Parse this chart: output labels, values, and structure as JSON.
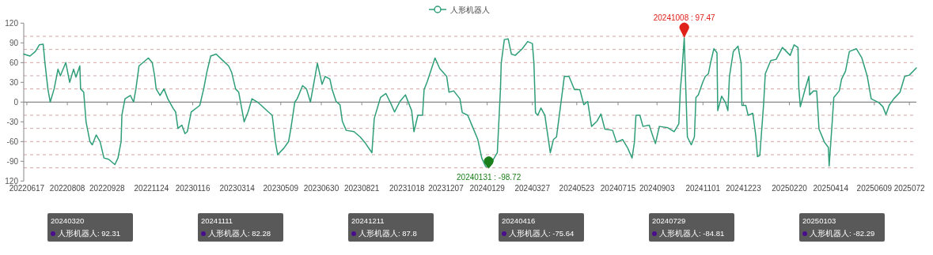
{
  "chart_data": {
    "type": "line",
    "legend": "top",
    "marker": "none",
    "line_style": "solid",
    "xlim": [
      "2022-06-13",
      "2025-08-02"
    ],
    "ylim": [
      -120,
      120
    ],
    "yticks": [
      {
        "value": -120,
        "label": "120"
      },
      -90,
      -60,
      -30,
      0,
      30,
      60,
      90,
      120
    ],
    "xticks": [
      {
        "value": "2022-06-17",
        "label": "20220617"
      },
      {
        "value": "2022-08-08",
        "label": "20220808"
      },
      {
        "value": "2022-09-28",
        "label": "20220928"
      },
      {
        "value": "2022-11-24",
        "label": "20221124"
      },
      {
        "value": "2023-01-16",
        "label": "20230116"
      },
      {
        "value": "2023-03-14",
        "label": "20230314"
      },
      {
        "value": "2023-05-09",
        "label": "20230509"
      },
      {
        "value": "2023-06-30",
        "label": "20230630"
      },
      {
        "value": "2023-08-21",
        "label": "20230821"
      },
      {
        "value": "2023-10-18",
        "label": "20231018"
      },
      {
        "value": "2023-12-07",
        "label": "20231207"
      },
      {
        "value": "2024-01-29",
        "label": "20240129"
      },
      {
        "value": "2024-03-27",
        "label": "20240327"
      },
      {
        "value": "2024-05-23",
        "label": "20240523"
      },
      {
        "value": "2024-07-15",
        "label": "20240715"
      },
      {
        "value": "2024-09-03",
        "label": "20240903"
      },
      {
        "value": "2024-11-01",
        "label": "20241101"
      },
      {
        "value": "2024-12-23",
        "label": "20241223"
      },
      {
        "value": "2025-02-20",
        "label": "20250220"
      },
      {
        "value": "2025-04-14",
        "label": "20250414"
      },
      {
        "value": "2025-06-09",
        "label": "20250609"
      },
      {
        "value": "2025-07-24",
        "label": "2025072"
      }
    ],
    "ref_lines": [
      {
        "axis": "y",
        "value": 100,
        "color": "#d4a5a5",
        "line_style": "dashed"
      },
      {
        "axis": "y",
        "value": 80,
        "color": "#d4a5a5",
        "line_style": "dashed"
      },
      {
        "axis": "y",
        "value": 60,
        "color": "#d4a5a5",
        "line_style": "dashed"
      },
      {
        "axis": "y",
        "value": 40,
        "color": "#d4a5a5",
        "line_style": "dashed"
      },
      {
        "axis": "y",
        "value": 20,
        "color": "#d4a5a5",
        "line_style": "dashed"
      },
      {
        "axis": "y",
        "value": -20,
        "color": "#d4a5a5",
        "line_style": "dashed"
      },
      {
        "axis": "y",
        "value": -40,
        "color": "#d4a5a5",
        "line_style": "dashed"
      },
      {
        "axis": "y",
        "value": -60,
        "color": "#d4a5a5",
        "line_style": "dashed"
      },
      {
        "axis": "y",
        "value": -80,
        "color": "#d4a5a5",
        "line_style": "dashed"
      },
      {
        "axis": "y",
        "value": -100,
        "color": "#d4a5a5",
        "line_style": "dashed"
      }
    ],
    "annotations": [
      {
        "text": "20241008 : 97.47",
        "x": "2024-10-08",
        "y": 97.47
      },
      {
        "text": "20240131 : -98.72",
        "x": "2024-01-31",
        "y": -98.72
      },
      "20240320\n人形机器人: 92.31",
      "20241111\n人形机器人: 82.28",
      "20241211\n人形机器人: 87.8",
      "20240416\n人形机器人: -75.64",
      "20240729\n人形机器人: -84.81",
      "20250103\n人形机器人: -82.29"
    ],
    "x": [
      "2022-06-13",
      "2022-06-21",
      "2022-06-28",
      "2022-07-03",
      "2022-07-08",
      "2022-07-10",
      "2022-07-14",
      "2022-07-17",
      "2022-07-22",
      "2022-07-27",
      "2022-07-30",
      "2022-08-06",
      "2022-08-11",
      "2022-08-16",
      "2022-08-19",
      "2022-08-24",
      "2022-08-25",
      "2022-08-29",
      "2022-09-01",
      "2022-09-06",
      "2022-09-09",
      "2022-09-14",
      "2022-09-19",
      "2022-09-24",
      "2022-09-30",
      "2022-10-08",
      "2022-10-12",
      "2022-10-16",
      "2022-10-17",
      "2022-10-21",
      "2022-10-28",
      "2022-11-01",
      "2022-11-04",
      "2022-11-08",
      "2022-11-20",
      "2022-11-25",
      "2022-11-28",
      "2022-11-30",
      "2022-12-05",
      "2022-12-10",
      "2022-12-15",
      "2022-12-22",
      "2022-12-25",
      "2022-12-28",
      "2023-01-02",
      "2023-01-06",
      "2023-01-09",
      "2023-01-14",
      "2023-01-25",
      "2023-01-30",
      "2023-02-03",
      "2023-02-08",
      "2023-02-15",
      "2023-02-22",
      "2023-03-03",
      "2023-03-07",
      "2023-03-12",
      "2023-03-16",
      "2023-03-23",
      "2023-03-28",
      "2023-04-02",
      "2023-04-09",
      "2023-04-14",
      "2023-04-23",
      "2023-04-28",
      "2023-05-02",
      "2023-05-05",
      "2023-05-13",
      "2023-05-19",
      "2023-05-22",
      "2023-05-27",
      "2023-05-30",
      "2023-06-06",
      "2023-06-11",
      "2023-06-16",
      "2023-06-19",
      "2023-06-25",
      "2023-07-01",
      "2023-07-05",
      "2023-07-11",
      "2023-07-14",
      "2023-07-19",
      "2023-07-24",
      "2023-07-27",
      "2023-08-01",
      "2023-08-11",
      "2023-08-19",
      "2023-08-26",
      "2023-09-03",
      "2023-09-06",
      "2023-09-14",
      "2023-09-21",
      "2023-09-28",
      "2023-10-02",
      "2023-10-09",
      "2023-10-16",
      "2023-10-21",
      "2023-10-24",
      "2023-10-27",
      "2023-11-01",
      "2023-11-07",
      "2023-11-09",
      "2023-11-13",
      "2023-11-23",
      "2023-11-29",
      "2023-12-08",
      "2023-12-11",
      "2023-12-17",
      "2023-12-25",
      "2023-12-28",
      "2024-01-04",
      "2024-01-10",
      "2024-01-17",
      "2024-01-22",
      "2024-01-27",
      "2024-01-31",
      "2024-02-11",
      "2024-02-15",
      "2024-02-16",
      "2024-02-20",
      "2024-02-25",
      "2024-02-29",
      "2024-03-05",
      "2024-03-14",
      "2024-03-21",
      "2024-03-27",
      "2024-03-29",
      "2024-03-31",
      "2024-04-03",
      "2024-04-07",
      "2024-04-12",
      "2024-04-19",
      "2024-04-23",
      "2024-04-27",
      "2024-05-04",
      "2024-05-07",
      "2024-05-13",
      "2024-05-20",
      "2024-05-27",
      "2024-06-01",
      "2024-06-06",
      "2024-06-11",
      "2024-06-18",
      "2024-06-23",
      "2024-06-28",
      "2024-07-08",
      "2024-07-13",
      "2024-07-21",
      "2024-07-27",
      "2024-08-02",
      "2024-08-05",
      "2024-08-07",
      "2024-08-12",
      "2024-08-16",
      "2024-08-24",
      "2024-08-29",
      "2024-09-01",
      "2024-09-06",
      "2024-09-17",
      "2024-09-25",
      "2024-10-01",
      "2024-10-03",
      "2024-10-05",
      "2024-10-08",
      "2024-10-10",
      "2024-10-12",
      "2024-10-17",
      "2024-10-21",
      "2024-10-23",
      "2024-10-26",
      "2024-11-01",
      "2024-11-04",
      "2024-11-08",
      "2024-11-11",
      "2024-11-15",
      "2024-11-19",
      "2024-11-20",
      "2024-11-25",
      "2024-11-30",
      "2024-12-03",
      "2024-12-05",
      "2024-12-10",
      "2024-12-16",
      "2024-12-20",
      "2024-12-21",
      "2024-12-26",
      "2024-12-29",
      "2025-01-04",
      "2025-01-08",
      "2025-01-10",
      "2025-01-13",
      "2025-01-18",
      "2025-01-20",
      "2025-01-27",
      "2025-02-03",
      "2025-02-11",
      "2025-02-21",
      "2025-02-26",
      "2025-03-03",
      "2025-03-04",
      "2025-03-06",
      "2025-03-12",
      "2025-03-17",
      "2025-03-18",
      "2025-03-23",
      "2025-03-27",
      "2025-03-30",
      "2025-04-06",
      "2025-04-11",
      "2025-04-12",
      "2025-04-16",
      "2025-04-18",
      "2025-04-25",
      "2025-04-28",
      "2025-05-03",
      "2025-05-08",
      "2025-05-17",
      "2025-05-24",
      "2025-05-31",
      "2025-06-05",
      "2025-06-15",
      "2025-06-20",
      "2025-06-24",
      "2025-06-28",
      "2025-07-04",
      "2025-07-12",
      "2025-07-18",
      "2025-07-24",
      "2025-08-02"
    ],
    "series": [
      {
        "name": "人形机器人",
        "color": "#2e9e78",
        "values": [
          73,
          70,
          77,
          87,
          88,
          62,
          20,
          0,
          20,
          50,
          40,
          60,
          30,
          50,
          38,
          55,
          20,
          15,
          -30,
          -60,
          -65,
          -50,
          -60,
          -85,
          -87,
          -95,
          -85,
          -60,
          -20,
          5,
          10,
          0,
          20,
          55,
          67,
          60,
          40,
          20,
          10,
          20,
          5,
          -10,
          -15,
          -40,
          -35,
          -48,
          -45,
          -15,
          -5,
          20,
          45,
          70,
          73,
          65,
          55,
          45,
          20,
          15,
          -30,
          -15,
          5,
          0,
          -5,
          -15,
          -20,
          -60,
          -80,
          -70,
          -60,
          -40,
          0,
          5,
          25,
          20,
          0,
          19,
          59,
          27,
          39,
          35,
          19,
          1,
          -4,
          -29,
          -43,
          -45,
          -53,
          -63,
          -77,
          -25,
          7,
          13,
          -4,
          -15,
          1,
          11,
          -4,
          -13,
          -45,
          -20,
          -20,
          19,
          31,
          67,
          51,
          39,
          15,
          17,
          5,
          -16,
          -20,
          -37,
          -57,
          -85,
          -98,
          -98.72,
          -77,
          19,
          59,
          95,
          96,
          73,
          71,
          81,
          92,
          89,
          59,
          -16,
          -20,
          -9,
          -20,
          -77,
          -57,
          -53,
          11,
          39,
          39,
          19,
          19,
          -4,
          1,
          -37,
          -29,
          -18,
          -41,
          -43,
          -61,
          -57,
          -69,
          -85,
          -61,
          -20,
          -20,
          -37,
          -35,
          -53,
          -63,
          -37,
          -39,
          -45,
          -33,
          19,
          47,
          97.47,
          19,
          -53,
          -65,
          -53,
          7,
          11,
          31,
          39,
          43,
          61,
          81,
          75,
          -13,
          9,
          -1,
          -13,
          39,
          77,
          85,
          59,
          -5,
          -5,
          -20,
          -17,
          -53,
          -83,
          -81,
          -1,
          43,
          63,
          65,
          83,
          71,
          87,
          83,
          23,
          -7,
          19,
          39,
          11,
          17,
          17,
          -41,
          -61,
          -69,
          -97,
          -29,
          7,
          17,
          35,
          47,
          77,
          81,
          67,
          39,
          5,
          -1,
          -7,
          -19,
          -5,
          5,
          15,
          39,
          41,
          52
        ]
      }
    ]
  }
}
